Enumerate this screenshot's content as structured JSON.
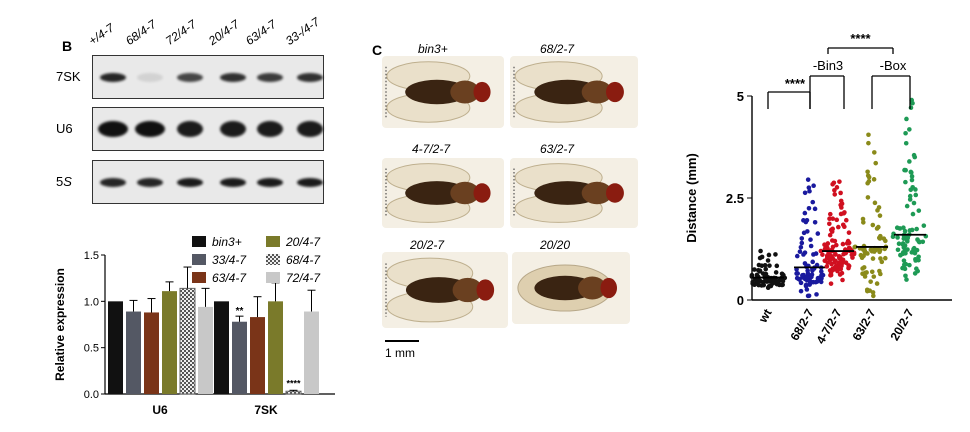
{
  "panel_b": {
    "letter": "B",
    "lanes": [
      "+/4-7",
      "68/4-7",
      "72/4-7",
      "20/4-7",
      "63/4-7",
      "33-/4-7"
    ],
    "rows": [
      {
        "label": "7SK",
        "intensities": [
          0.9,
          0.1,
          0.75,
          0.85,
          0.8,
          0.85
        ]
      },
      {
        "label": "U6",
        "intensities": [
          1.0,
          1.0,
          0.95,
          0.95,
          0.95,
          0.95
        ]
      },
      {
        "label": "5S",
        "intensities": [
          0.9,
          0.9,
          0.95,
          0.95,
          0.95,
          0.95
        ]
      }
    ]
  },
  "panel_c": {
    "letter": "C",
    "flies": [
      "bin3+",
      "68/2-7",
      "4-7/2-7",
      "63/2-7",
      "20/2-7",
      "20/20"
    ],
    "scale_bar": "1 mm"
  },
  "chart_data": [
    {
      "type": "bar",
      "ylabel": "Relative expression",
      "ylim": [
        0,
        1.5
      ],
      "yticks": [
        "0.0",
        "0.5",
        "1.0",
        "1.5"
      ],
      "categories": [
        "U6",
        "7SK"
      ],
      "series": [
        {
          "name": "bin3+",
          "color": "#111111",
          "values": [
            1.0,
            1.0
          ],
          "err": [
            0,
            0
          ]
        },
        {
          "name": "33/4-7",
          "color": "#545864",
          "values": [
            0.89,
            0.78
          ],
          "err": [
            0.12,
            0.06
          ]
        },
        {
          "name": "63/4-7",
          "color": "#7a3418",
          "values": [
            0.88,
            0.83
          ],
          "err": [
            0.15,
            0.22
          ]
        },
        {
          "name": "20/4-7",
          "color": "#7a7a2a",
          "values": [
            1.11,
            1.0
          ],
          "err": [
            0.1,
            0.2
          ]
        },
        {
          "name": "68/4-7",
          "color": "#a8a8a8",
          "pattern": "checker",
          "values": [
            1.14,
            0.03
          ],
          "err": [
            0.23,
            0.01
          ]
        },
        {
          "name": "72/4-7",
          "color": "#c8c8c8",
          "values": [
            0.94,
            0.89
          ],
          "err": [
            0.2,
            0.23
          ]
        }
      ],
      "annotations": [
        "**",
        "****"
      ]
    },
    {
      "type": "scatter",
      "ylabel": "Distance (mm)",
      "ylim": [
        0,
        5
      ],
      "yticks": [
        "0",
        "2.5",
        "5"
      ],
      "categories": [
        "wt",
        "68/2-7",
        "4-7/2-7",
        "63/2-7",
        "20/2-7"
      ],
      "series": [
        {
          "name": "wt",
          "color": "#111111",
          "median": 0.55,
          "min": 0.3,
          "max": 1.2,
          "n": 70
        },
        {
          "name": "68/2-7",
          "color": "#1a1a9e",
          "median": 0.8,
          "min": 0.1,
          "max": 2.95,
          "n": 80
        },
        {
          "name": "4-7/2-7",
          "color": "#d01020",
          "median": 1.2,
          "min": 0.4,
          "max": 2.9,
          "n": 110
        },
        {
          "name": "63/2-7",
          "color": "#8a8a1a",
          "median": 1.3,
          "min": 0.1,
          "max": 4.05,
          "n": 70
        },
        {
          "name": "20/2-7",
          "color": "#1e9a55",
          "median": 1.6,
          "min": 0.5,
          "max": 4.9,
          "n": 85
        }
      ],
      "brackets": [
        {
          "label": "****"
        },
        {
          "label": "-Bin3"
        },
        {
          "label": "-Box"
        },
        {
          "label": "****"
        }
      ]
    }
  ]
}
